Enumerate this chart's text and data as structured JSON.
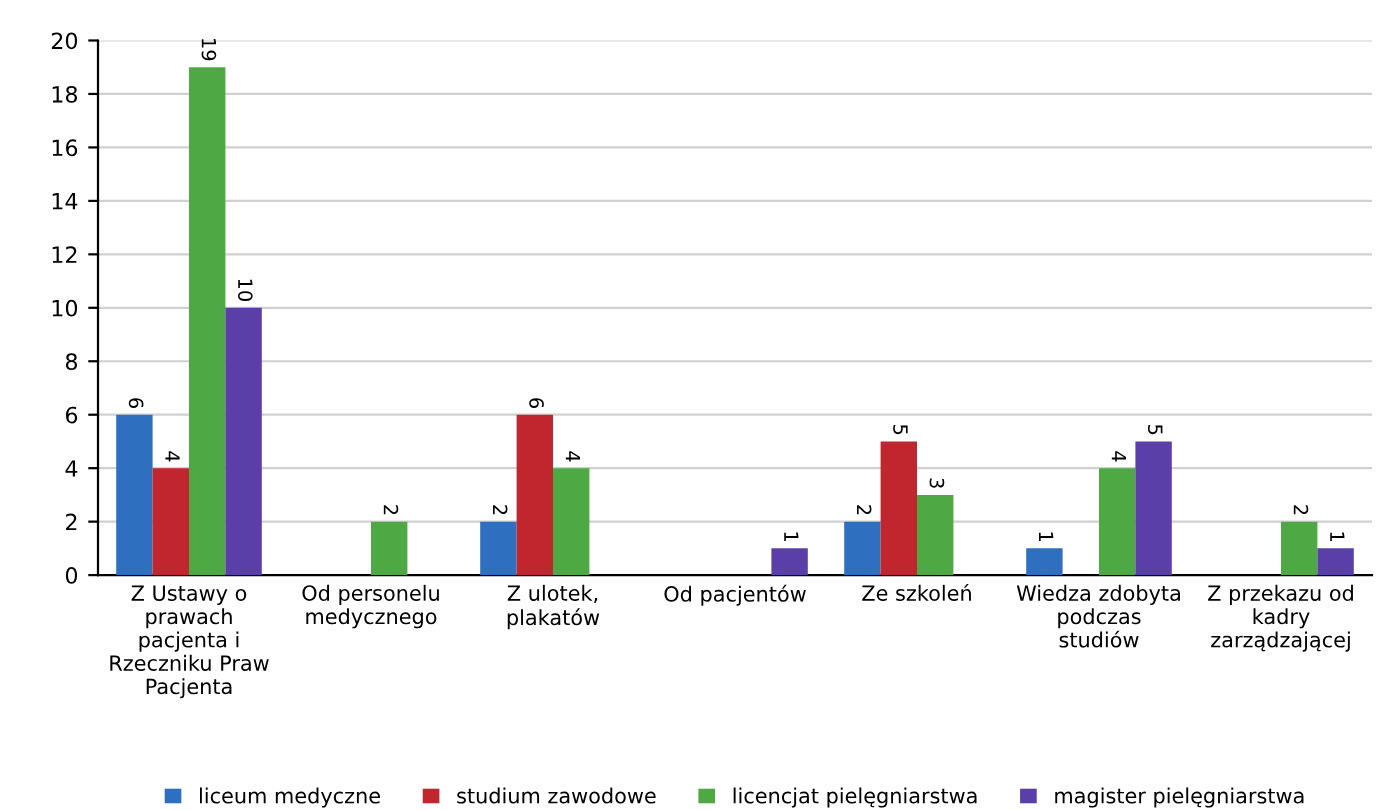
{
  "chart_data": {
    "type": "bar",
    "categories": [
      "Z Ustawy o prawach pacjenta i Rzeczniku Praw Pacjenta",
      "Od personelu medycznego",
      "Z ulotek, plakatów",
      "Od pacjentów",
      "Ze szkoleń",
      "Wiedza zdobyta podczas studiów",
      "Z przekazu od kadry zarządzającej"
    ],
    "series": [
      {
        "name": "liceum medyczne",
        "color": "#2e6fc0",
        "values": [
          6,
          null,
          2,
          null,
          2,
          1,
          null
        ]
      },
      {
        "name": "studium zawodowe",
        "color": "#c0262d",
        "values": [
          4,
          null,
          6,
          null,
          5,
          null,
          null
        ]
      },
      {
        "name": "licencjat pielęgniarstwa",
        "color": "#4ea843",
        "values": [
          19,
          2,
          4,
          null,
          3,
          4,
          2
        ]
      },
      {
        "name": "magister pielęgniarstwa",
        "color": "#5b3fa8",
        "values": [
          10,
          null,
          null,
          1,
          null,
          5,
          1
        ]
      }
    ],
    "ylim": [
      0,
      20
    ],
    "yticks": [
      0,
      2,
      4,
      6,
      8,
      10,
      12,
      14,
      16,
      18,
      20
    ],
    "grid": "y",
    "legend": "bottom",
    "data_labels": true
  }
}
